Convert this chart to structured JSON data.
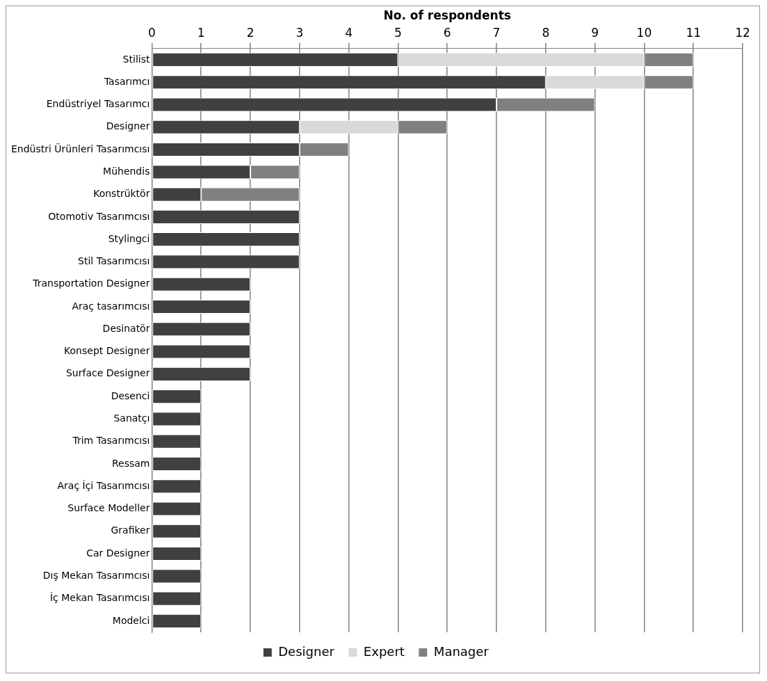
{
  "chart_data": {
    "type": "bar",
    "orientation": "horizontal",
    "stacked": true,
    "xlabel": "No. of respondents",
    "categories": [
      "Stilist",
      "Tasarımcı",
      "Endüstriyel Tasarımcı",
      "Designer",
      "Endüstri Ürünleri Tasarımcısı",
      "Mühendis",
      "Konstrüktör",
      "Otomotiv Tasarımcısı",
      "Stylingci",
      "Stil Tasarımcısı",
      "Transportation Designer",
      "Araç tasarımcısı",
      "Desinatör",
      "Konsept Designer",
      "Surface Designer",
      "Desenci",
      "Sanatçı",
      "Trim Tasarımcısı",
      "Ressam",
      "Araç İçi Tasarımcısı",
      "Surface Modeller",
      "Grafiker",
      "Car Designer",
      "Dış Mekan Tasarımcısı",
      "İç Mekan Tasarımcısı",
      "Modelci"
    ],
    "series": [
      {
        "name": "Designer",
        "color": "#404040",
        "values": [
          5,
          8,
          7,
          3,
          3,
          2,
          1,
          3,
          3,
          3,
          2,
          2,
          2,
          2,
          2,
          1,
          1,
          1,
          1,
          1,
          1,
          1,
          1,
          1,
          1,
          1
        ]
      },
      {
        "name": "Expert",
        "color": "#d9d9d9",
        "values": [
          5,
          2,
          null,
          2,
          null,
          null,
          null,
          null,
          null,
          null,
          null,
          null,
          null,
          null,
          null,
          null,
          null,
          null,
          null,
          null,
          null,
          null,
          null,
          null,
          null,
          null
        ]
      },
      {
        "name": "Manager",
        "color": "#808080",
        "values": [
          1,
          1,
          2,
          1,
          1,
          1,
          2,
          null,
          null,
          null,
          null,
          null,
          null,
          null,
          null,
          null,
          null,
          null,
          null,
          null,
          null,
          null,
          null,
          null,
          null,
          null
        ]
      }
    ],
    "xlim": [
      0,
      12
    ],
    "xticks": [
      0,
      1,
      2,
      3,
      4,
      5,
      6,
      7,
      8,
      9,
      10,
      11,
      12
    ],
    "grid": "x",
    "legend": "bottom"
  }
}
